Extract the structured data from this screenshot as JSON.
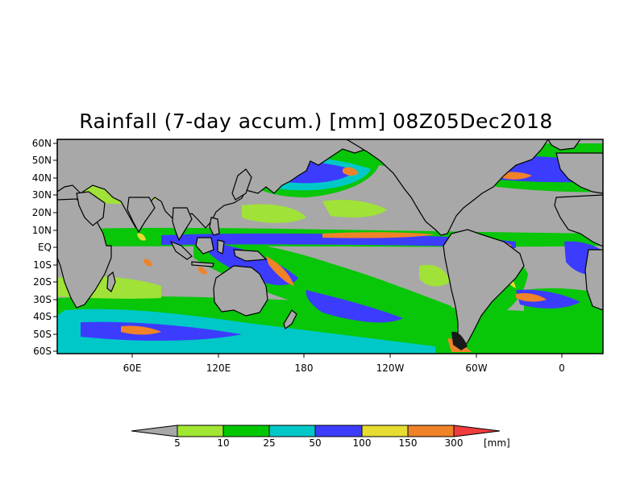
{
  "title": "Rainfall (7-day accum.) [mm] 08Z05Dec2018",
  "map": {
    "lat_labels": [
      "60N",
      "50N",
      "40N",
      "30N",
      "20N",
      "10N",
      "EQ",
      "10S",
      "20S",
      "30S",
      "40S",
      "50S",
      "60S"
    ],
    "lon_labels": [
      "60E",
      "120E",
      "180",
      "120W",
      "60W",
      "0"
    ],
    "background_color": "#a8a8a8",
    "coastline_color": "#000000"
  },
  "colorbar": {
    "thresholds": [
      "5",
      "10",
      "25",
      "50",
      "100",
      "150",
      "300"
    ],
    "unit": "[mm]",
    "colors": [
      "#a8a8a8",
      "#a0e632",
      "#00c800",
      "#00c8c8",
      "#3c3cff",
      "#e6dc32",
      "#f08228",
      "#f03c3c"
    ]
  }
}
